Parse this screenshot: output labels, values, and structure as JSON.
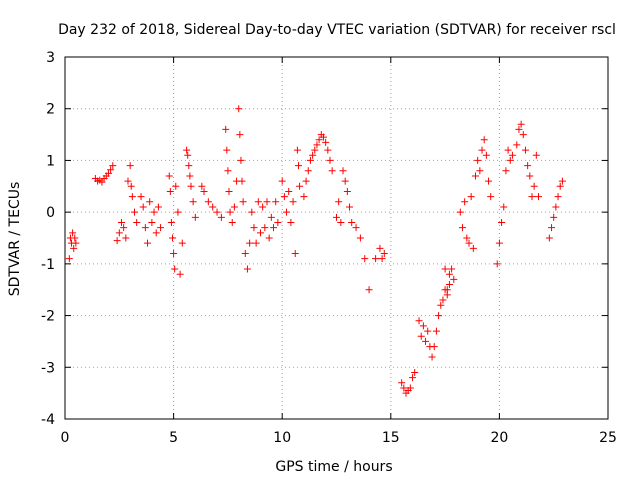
{
  "chart_data": {
    "type": "scatter",
    "title": "Day 232 of 2018, Sidereal Day-to-day VTEC variation (SDTVAR) for receiver rscl",
    "xlabel": "GPS time / hours",
    "ylabel": "SDTVAR / TECUs",
    "xlim": [
      0,
      25
    ],
    "ylim": [
      -4,
      3
    ],
    "xticks": [
      "0",
      "5",
      "10",
      "15",
      "20",
      "25"
    ],
    "yticks": [
      "-4",
      "-3",
      "-2",
      "-1",
      "0",
      "1",
      "2",
      "3"
    ],
    "grid": true,
    "marker": "+",
    "color": "#ff0000",
    "series": [
      {
        "name": "SDTVAR",
        "points": [
          [
            0.2,
            -0.9
          ],
          [
            0.25,
            -0.5
          ],
          [
            0.3,
            -0.6
          ],
          [
            0.35,
            -0.4
          ],
          [
            0.4,
            -0.7
          ],
          [
            0.45,
            -0.5
          ],
          [
            0.5,
            -0.6
          ],
          [
            1.4,
            0.65
          ],
          [
            1.5,
            0.6
          ],
          [
            1.6,
            0.62
          ],
          [
            1.7,
            0.58
          ],
          [
            1.8,
            0.65
          ],
          [
            1.9,
            0.7
          ],
          [
            2.0,
            0.75
          ],
          [
            2.1,
            0.82
          ],
          [
            2.2,
            0.9
          ],
          [
            2.4,
            -0.55
          ],
          [
            2.5,
            -0.4
          ],
          [
            2.6,
            -0.2
          ],
          [
            2.7,
            -0.3
          ],
          [
            2.8,
            -0.5
          ],
          [
            2.9,
            0.6
          ],
          [
            3.0,
            0.9
          ],
          [
            3.05,
            0.5
          ],
          [
            3.1,
            0.3
          ],
          [
            3.2,
            0.0
          ],
          [
            3.3,
            -0.2
          ],
          [
            3.5,
            0.3
          ],
          [
            3.6,
            0.1
          ],
          [
            3.7,
            -0.3
          ],
          [
            3.8,
            -0.6
          ],
          [
            3.9,
            0.2
          ],
          [
            4.0,
            -0.2
          ],
          [
            4.1,
            0.0
          ],
          [
            4.2,
            -0.4
          ],
          [
            4.3,
            0.1
          ],
          [
            4.4,
            -0.3
          ],
          [
            4.8,
            0.7
          ],
          [
            4.85,
            0.4
          ],
          [
            4.9,
            -0.2
          ],
          [
            4.95,
            -0.5
          ],
          [
            5.0,
            -0.8
          ],
          [
            5.05,
            -1.1
          ],
          [
            5.1,
            0.5
          ],
          [
            5.2,
            0.0
          ],
          [
            5.3,
            -1.2
          ],
          [
            5.4,
            -0.6
          ],
          [
            5.6,
            1.2
          ],
          [
            5.65,
            1.1
          ],
          [
            5.7,
            0.9
          ],
          [
            5.75,
            0.7
          ],
          [
            5.8,
            0.5
          ],
          [
            5.9,
            0.2
          ],
          [
            6.0,
            -0.1
          ],
          [
            6.3,
            0.5
          ],
          [
            6.4,
            0.4
          ],
          [
            6.6,
            0.2
          ],
          [
            6.8,
            0.1
          ],
          [
            7.0,
            0.0
          ],
          [
            7.2,
            -0.1
          ],
          [
            7.4,
            1.6
          ],
          [
            7.45,
            1.2
          ],
          [
            7.5,
            0.8
          ],
          [
            7.55,
            0.4
          ],
          [
            7.6,
            0.0
          ],
          [
            7.7,
            -0.2
          ],
          [
            7.8,
            0.1
          ],
          [
            7.9,
            0.6
          ],
          [
            8.0,
            2.0
          ],
          [
            8.05,
            1.5
          ],
          [
            8.1,
            1.0
          ],
          [
            8.15,
            0.6
          ],
          [
            8.2,
            0.2
          ],
          [
            8.3,
            -0.8
          ],
          [
            8.4,
            -1.1
          ],
          [
            8.5,
            -0.6
          ],
          [
            8.6,
            0.0
          ],
          [
            8.7,
            -0.3
          ],
          [
            8.8,
            -0.6
          ],
          [
            8.9,
            0.2
          ],
          [
            9.0,
            -0.4
          ],
          [
            9.1,
            0.1
          ],
          [
            9.2,
            -0.3
          ],
          [
            9.3,
            0.2
          ],
          [
            9.4,
            -0.5
          ],
          [
            9.5,
            -0.1
          ],
          [
            9.6,
            -0.3
          ],
          [
            9.7,
            0.2
          ],
          [
            9.8,
            -0.2
          ],
          [
            10.0,
            0.6
          ],
          [
            10.1,
            0.3
          ],
          [
            10.2,
            0.0
          ],
          [
            10.3,
            0.4
          ],
          [
            10.4,
            -0.2
          ],
          [
            10.5,
            0.2
          ],
          [
            10.6,
            -0.8
          ],
          [
            10.7,
            1.2
          ],
          [
            10.75,
            0.9
          ],
          [
            10.8,
            0.5
          ],
          [
            11.0,
            0.3
          ],
          [
            11.1,
            0.6
          ],
          [
            11.2,
            0.8
          ],
          [
            11.3,
            1.0
          ],
          [
            11.4,
            1.1
          ],
          [
            11.5,
            1.2
          ],
          [
            11.6,
            1.3
          ],
          [
            11.7,
            1.4
          ],
          [
            11.8,
            1.5
          ],
          [
            11.9,
            1.45
          ],
          [
            12.0,
            1.35
          ],
          [
            12.1,
            1.2
          ],
          [
            12.2,
            1.0
          ],
          [
            12.3,
            0.8
          ],
          [
            12.5,
            -0.1
          ],
          [
            12.6,
            0.2
          ],
          [
            12.7,
            -0.2
          ],
          [
            12.8,
            0.8
          ],
          [
            12.9,
            0.6
          ],
          [
            13.0,
            0.4
          ],
          [
            13.1,
            0.1
          ],
          [
            13.2,
            -0.2
          ],
          [
            13.4,
            -0.3
          ],
          [
            13.6,
            -0.5
          ],
          [
            13.8,
            -0.9
          ],
          [
            14.0,
            -1.5
          ],
          [
            14.3,
            -0.9
          ],
          [
            14.5,
            -0.7
          ],
          [
            14.6,
            -0.9
          ],
          [
            14.7,
            -0.8
          ],
          [
            15.5,
            -3.3
          ],
          [
            15.6,
            -3.4
          ],
          [
            15.7,
            -3.5
          ],
          [
            15.8,
            -3.45
          ],
          [
            15.9,
            -3.4
          ],
          [
            16.0,
            -3.2
          ],
          [
            16.1,
            -3.1
          ],
          [
            16.3,
            -2.1
          ],
          [
            16.4,
            -2.4
          ],
          [
            16.5,
            -2.2
          ],
          [
            16.6,
            -2.5
          ],
          [
            16.7,
            -2.3
          ],
          [
            16.8,
            -2.6
          ],
          [
            16.9,
            -2.8
          ],
          [
            17.0,
            -2.6
          ],
          [
            17.1,
            -2.3
          ],
          [
            17.2,
            -2.0
          ],
          [
            17.3,
            -1.8
          ],
          [
            17.4,
            -1.7
          ],
          [
            17.5,
            -1.5
          ],
          [
            17.6,
            -1.6
          ],
          [
            17.7,
            -1.4
          ],
          [
            17.8,
            -1.1
          ],
          [
            17.9,
            -1.3
          ],
          [
            17.5,
            -1.1
          ],
          [
            17.6,
            -1.5
          ],
          [
            17.7,
            -1.2
          ],
          [
            18.2,
            0.0
          ],
          [
            18.3,
            -0.3
          ],
          [
            18.4,
            0.2
          ],
          [
            18.5,
            -0.5
          ],
          [
            18.6,
            -0.6
          ],
          [
            18.7,
            0.3
          ],
          [
            18.8,
            -0.7
          ],
          [
            18.9,
            0.7
          ],
          [
            19.0,
            1.0
          ],
          [
            19.1,
            0.8
          ],
          [
            19.2,
            1.2
          ],
          [
            19.3,
            1.4
          ],
          [
            19.4,
            1.1
          ],
          [
            19.5,
            0.6
          ],
          [
            19.6,
            0.3
          ],
          [
            19.9,
            -1.0
          ],
          [
            20.0,
            -0.6
          ],
          [
            20.1,
            -0.2
          ],
          [
            20.2,
            0.1
          ],
          [
            20.3,
            0.8
          ],
          [
            20.4,
            1.2
          ],
          [
            20.5,
            1.0
          ],
          [
            20.6,
            1.1
          ],
          [
            20.8,
            1.3
          ],
          [
            20.9,
            1.6
          ],
          [
            21.0,
            1.7
          ],
          [
            21.1,
            1.5
          ],
          [
            21.2,
            1.2
          ],
          [
            21.3,
            0.9
          ],
          [
            21.4,
            0.7
          ],
          [
            21.5,
            0.3
          ],
          [
            21.6,
            0.5
          ],
          [
            21.7,
            1.1
          ],
          [
            21.8,
            0.3
          ],
          [
            22.3,
            -0.5
          ],
          [
            22.4,
            -0.3
          ],
          [
            22.5,
            -0.1
          ],
          [
            22.6,
            0.1
          ],
          [
            22.7,
            0.3
          ],
          [
            22.8,
            0.5
          ],
          [
            22.9,
            0.6
          ]
        ]
      }
    ]
  }
}
